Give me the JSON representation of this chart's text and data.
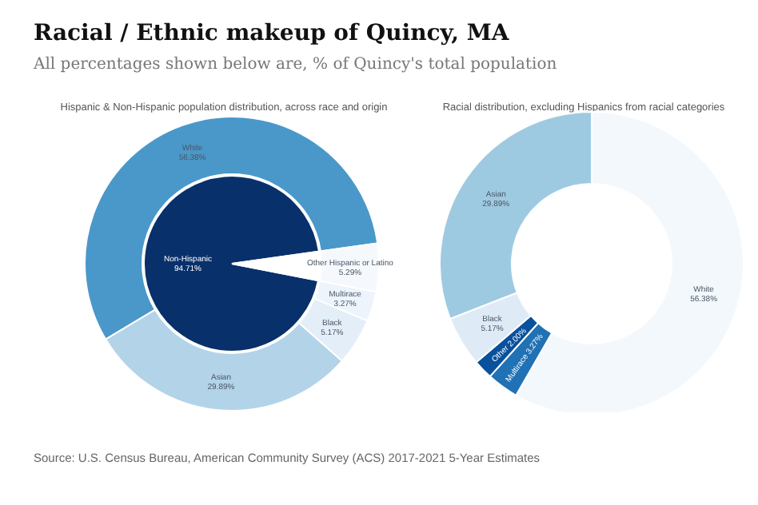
{
  "chart_data": [
    {
      "type": "other",
      "title": "Racial / Ethnic makeup of Quincy, MA",
      "subtitle": "All percentages shown below are, % of Quincy's total population",
      "annotations": [
        "Source: U.S. Census Bureau, American Community Survey (ACS) 2017-2021 5-Year Estimates"
      ]
    },
    {
      "type": "donut",
      "title": "Hispanic & Non-Hispanic population distribution, across race and origin",
      "legend": false,
      "categories": [
        "White",
        "Asian",
        "Black",
        "Multirace",
        "Other Hispanic or Latino"
      ],
      "values": [
        56.38,
        29.89,
        5.17,
        3.27,
        5.29
      ],
      "value_labels": [
        "56.38%",
        "29.89%",
        "5.17%",
        "3.27%",
        "5.29%"
      ],
      "colors": [
        "#4a98c9",
        "#b3d3e8",
        "#e3eef8",
        "#edf4fb",
        "#f5f9fd"
      ]
    },
    {
      "type": "pie",
      "legend": false,
      "categories": [
        "Non-Hispanic",
        null
      ],
      "values": [
        94.71,
        5.29
      ],
      "value_labels": [
        "94.71%",
        null
      ],
      "colors": [
        "#08306b",
        "#ffffff"
      ]
    },
    {
      "type": "donut",
      "title": "Racial distribution, excluding Hispanics from racial categories",
      "legend": false,
      "categories": [
        "White",
        "Multirace",
        "Other",
        "Black",
        "Asian"
      ],
      "values": [
        56.38,
        3.27,
        2.0,
        5.17,
        29.89
      ],
      "value_labels": [
        "56.38%",
        "3.27%",
        "2.00%",
        "5.17%",
        "29.89%"
      ],
      "colors": [
        "#f3f8fd",
        "#2171b5",
        "#08519c",
        "#deebf7",
        "#9ecae1"
      ]
    }
  ]
}
